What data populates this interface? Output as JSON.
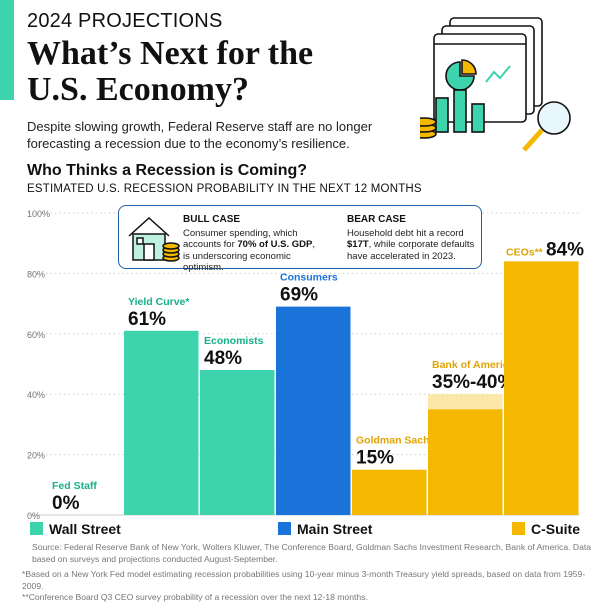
{
  "header": {
    "kicker": "2024 PROJECTIONS",
    "title": "What’s Next for the U.S. Economy?",
    "intro": "Despite slowing growth, Federal Reserve staff are no longer forecasting a recession due to the economy’s resilience."
  },
  "chart_data": {
    "type": "bar",
    "title": "Who Thinks a Recession is Coming?",
    "subtitle": "ESTIMATED U.S. RECESSION PROBABILITY IN THE NEXT 12 MONTHS",
    "ylim": [
      0,
      100
    ],
    "yticks": [
      0,
      20,
      40,
      60,
      80,
      100
    ],
    "ytick_labels": [
      "0%",
      "20%",
      "40%",
      "60%",
      "80%",
      "100%"
    ],
    "grid": true,
    "categories": [
      "Fed Staff",
      "Yield Curve*",
      "Economists",
      "Consumers",
      "Goldman Sachs",
      "Bank of America",
      "CEOs**"
    ],
    "values": [
      0,
      61,
      48,
      69,
      15,
      40,
      84
    ],
    "value_labels": [
      "0%",
      "61%",
      "48%",
      "69%",
      "15%",
      "35%-40%",
      "84%"
    ],
    "range_low": [
      null,
      null,
      null,
      null,
      null,
      35,
      null
    ],
    "groups": [
      "Wall Street",
      "Wall Street",
      "Wall Street",
      "Main Street",
      "C-Suite",
      "C-Suite",
      "C-Suite"
    ],
    "legend": [
      {
        "name": "Wall Street",
        "color": "#3cd3ad"
      },
      {
        "name": "Main Street",
        "color": "#1a73d9"
      },
      {
        "name": "C-Suite",
        "color": "#f5b800"
      }
    ],
    "legend_position": "bottom"
  },
  "colors": {
    "Wall Street": "#3cd3ad",
    "Main Street": "#1a73d9",
    "C-Suite": "#f5b800",
    "label_Wall Street": "#16b08a",
    "label_Main Street": "#1a73d9",
    "label_C-Suite": "#e0a300",
    "range_band": "#fbe8a8",
    "border": "#1f5fa8"
  },
  "callout": {
    "bull": {
      "heading": "BULL CASE",
      "pre": "Consumer spending, which accounts for ",
      "bold": "70% of U.S. GDP",
      "post": ", is underscoring economic optimism."
    },
    "bear": {
      "heading": "BEAR CASE",
      "pre": "Household debt hit a record ",
      "bold": "$17T",
      "post": ", while corporate defaults have accelerated in 2023."
    }
  },
  "footnotes": {
    "source": "Source: Federal Reserve Bank of New York, Wolters Kluwer, The Conference Board, Goldman Sachs Investment Research, Bank of America. Data based on surveys and projections conducted August-September.",
    "note1": "*Based on a New York Fed model estimating recession probabilities using 10-year minus 3-month Treasury yield spreads, based on data from 1959-2009.",
    "note2": "**Conference Board Q3 CEO survey probability of a recession over the next 12-18 months."
  },
  "illustration_icon": "dashboard-coins-magnifier-illustration",
  "callout_icon": "house-coins-icon"
}
